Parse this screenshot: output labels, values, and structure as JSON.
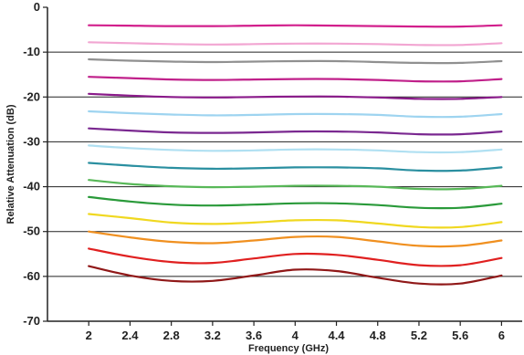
{
  "chart_data": {
    "type": "line",
    "xlabel": "Frequency (GHz)",
    "ylabel": "Relative Attenuation (dB)",
    "xlim": [
      1.6,
      6.2
    ],
    "ylim": [
      -70,
      0
    ],
    "x_ticks": [
      2,
      2.4,
      2.8,
      3.2,
      3.6,
      4,
      4.4,
      4.8,
      5.2,
      5.6,
      6
    ],
    "x_tick_labels": [
      "2",
      "2.4",
      "2.8",
      "3.2",
      "3.6",
      "4",
      "4.4",
      "4.8",
      "5.2",
      "5.6",
      "6"
    ],
    "y_ticks": [
      0,
      -10,
      -20,
      -30,
      -40,
      -50,
      -60,
      -70
    ],
    "y_tick_labels": [
      "0",
      "-10",
      "-20",
      "-30",
      "-40",
      "-50",
      "-60",
      "-70"
    ],
    "gridlines_y": [
      -10,
      -20,
      -30,
      -40,
      -50,
      -60
    ],
    "grid": "horizontal",
    "x": [
      2,
      2.4,
      2.8,
      3.2,
      3.6,
      4,
      4.4,
      4.8,
      5.2,
      5.6,
      6
    ],
    "series": [
      {
        "color": "#d21f8c",
        "values": [
          -4.0,
          -4.1,
          -4.2,
          -4.2,
          -4.1,
          -4.0,
          -4.1,
          -4.2,
          -4.3,
          -4.3,
          -4.0
        ]
      },
      {
        "color": "#f2a6d2",
        "values": [
          -7.8,
          -8.0,
          -8.2,
          -8.3,
          -8.2,
          -8.1,
          -8.1,
          -8.2,
          -8.4,
          -8.4,
          -8.0
        ]
      },
      {
        "color": "#909090",
        "values": [
          -11.6,
          -11.9,
          -12.1,
          -12.2,
          -12.1,
          -12.0,
          -12.0,
          -12.2,
          -12.4,
          -12.4,
          -12.0
        ]
      },
      {
        "color": "#c0208a",
        "values": [
          -15.5,
          -15.8,
          -16.1,
          -16.2,
          -16.1,
          -16.0,
          -16.0,
          -16.2,
          -16.5,
          -16.5,
          -16.0
        ]
      },
      {
        "color": "#8a1a8a",
        "values": [
          -19.3,
          -19.7,
          -20.0,
          -20.1,
          -20.0,
          -19.9,
          -19.9,
          -20.1,
          -20.4,
          -20.4,
          -20.0
        ]
      },
      {
        "color": "#9ed4f0",
        "values": [
          -23.2,
          -23.6,
          -23.9,
          -24.1,
          -24.0,
          -23.8,
          -23.8,
          -24.0,
          -24.4,
          -24.4,
          -23.8
        ]
      },
      {
        "color": "#7a2890",
        "values": [
          -27.0,
          -27.5,
          -27.9,
          -28.0,
          -27.9,
          -27.7,
          -27.7,
          -27.9,
          -28.3,
          -28.3,
          -27.7
        ]
      },
      {
        "color": "#b0e0f2",
        "values": [
          -30.8,
          -31.4,
          -31.8,
          -32.0,
          -31.9,
          -31.7,
          -31.7,
          -31.9,
          -32.3,
          -32.3,
          -31.7
        ]
      },
      {
        "color": "#2a8fa0",
        "values": [
          -34.7,
          -35.3,
          -35.8,
          -36.0,
          -35.9,
          -35.7,
          -35.7,
          -35.9,
          -36.4,
          -36.4,
          -35.7
        ]
      },
      {
        "color": "#58b858",
        "values": [
          -38.5,
          -39.4,
          -39.9,
          -40.1,
          -40.0,
          -39.8,
          -39.8,
          -40.0,
          -40.5,
          -40.5,
          -39.8
        ]
      },
      {
        "color": "#2a9a3a",
        "values": [
          -42.3,
          -43.3,
          -44.0,
          -44.2,
          -44.0,
          -43.7,
          -43.7,
          -44.1,
          -44.7,
          -44.7,
          -43.8
        ]
      },
      {
        "color": "#f0d820",
        "values": [
          -46.1,
          -47.0,
          -48.0,
          -48.3,
          -48.0,
          -47.5,
          -47.5,
          -48.2,
          -49.0,
          -49.0,
          -47.9
        ]
      },
      {
        "color": "#f09020",
        "values": [
          -50.0,
          -51.3,
          -52.3,
          -52.6,
          -52.0,
          -51.2,
          -51.2,
          -52.2,
          -53.2,
          -53.2,
          -52.0
        ]
      },
      {
        "color": "#e02020",
        "values": [
          -53.8,
          -55.6,
          -56.8,
          -57.0,
          -56.0,
          -55.0,
          -55.2,
          -56.3,
          -57.5,
          -57.5,
          -55.9
        ]
      },
      {
        "color": "#901818",
        "values": [
          -57.7,
          -59.8,
          -61.0,
          -61.0,
          -59.8,
          -58.5,
          -58.8,
          -60.3,
          -61.6,
          -61.6,
          -59.8
        ]
      }
    ]
  }
}
